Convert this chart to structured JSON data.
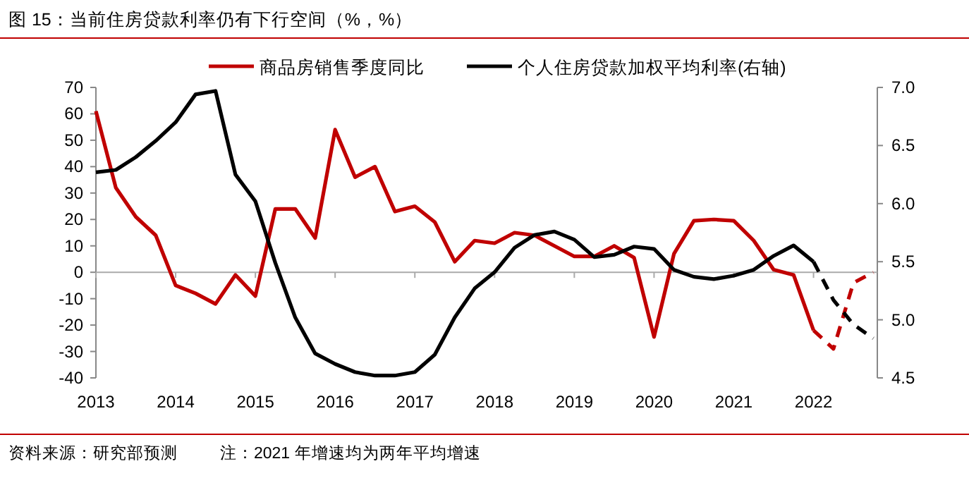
{
  "chart_data": {
    "type": "line",
    "title": "图 15：当前住房贷款利率仍有下行空间（%，%）",
    "annotations": [
      "资料来源：研究部预测",
      "注：2021 年增速均为两年平均增速"
    ],
    "xlim": [
      2013,
      2022.8
    ],
    "xticks": [
      2013,
      2014,
      2015,
      2016,
      2017,
      2018,
      2019,
      2020,
      2021,
      2022
    ],
    "ylim": [
      -40,
      70
    ],
    "yticks": [
      -40,
      -30,
      -20,
      -10,
      0,
      10,
      20,
      30,
      40,
      50,
      60,
      70
    ],
    "y2lim": [
      4.5,
      7.0
    ],
    "y2ticks": [
      4.5,
      {
        "value": 5,
        "label": "5.0"
      },
      5.5,
      {
        "value": 6,
        "label": "6.0"
      },
      6.5,
      {
        "value": 7,
        "label": "7.0"
      }
    ],
    "legend": "top",
    "series": [
      {
        "name": "商品房销售季度同比",
        "color": "#c00000",
        "line_style": "solid",
        "x": [
          2013,
          2013.25,
          2013.5,
          2013.75,
          2014,
          2014.25,
          2014.5,
          2014.75,
          2015,
          2015.25,
          2015.5,
          2015.75,
          2016,
          2016.25,
          2016.5,
          2016.75,
          2017,
          2017.25,
          2017.5,
          2017.75,
          2018,
          2018.25,
          2018.5,
          2018.75,
          2019,
          2019.25,
          2019.5,
          2019.75,
          2020,
          2020.25,
          2020.5,
          2020.75,
          2021,
          2021.25,
          2021.5,
          2021.75,
          2022
        ],
        "values": [
          61,
          32,
          21,
          14,
          -5,
          -8,
          -12,
          -1,
          -9,
          24,
          24,
          13,
          54,
          36,
          40,
          23,
          25,
          19,
          4,
          12,
          11,
          15,
          14,
          10,
          6,
          6,
          10,
          5.5,
          -24.5,
          7,
          19.5,
          20,
          19.5,
          12,
          1,
          -1,
          -22
        ]
      },
      {
        "color": "#c00000",
        "line_style": "dashed",
        "x": [
          2022,
          2022.25,
          2022.5,
          2022.75
        ],
        "values": [
          -22,
          -29,
          -4,
          0
        ]
      },
      {
        "name": "个人住房贷款加权平均利率(右轴)",
        "color": "#000000",
        "line_style": "solid",
        "axis": "y2",
        "x": [
          2013,
          2013.25,
          2013.5,
          2013.75,
          2014,
          2014.25,
          2014.5,
          2014.75,
          2015,
          2015.25,
          2015.5,
          2015.75,
          2016,
          2016.25,
          2016.5,
          2016.75,
          2017,
          2017.25,
          2017.5,
          2017.75,
          2018,
          2018.25,
          2018.5,
          2018.75,
          2019,
          2019.25,
          2019.5,
          2019.75,
          2020,
          2020.25,
          2020.5,
          2020.75,
          2021,
          2021.25,
          2021.5,
          2021.75,
          2022
        ],
        "values": [
          6.27,
          6.29,
          6.4,
          6.54,
          6.7,
          6.94,
          6.97,
          6.25,
          6.02,
          5.49,
          5.02,
          4.71,
          4.62,
          4.55,
          4.52,
          4.52,
          4.55,
          4.7,
          5.02,
          5.27,
          5.41,
          5.62,
          5.73,
          5.76,
          5.69,
          5.54,
          5.56,
          5.63,
          5.61,
          5.43,
          5.37,
          5.35,
          5.38,
          5.43,
          5.55,
          5.64,
          5.5
        ]
      },
      {
        "color": "#000000",
        "line_style": "dashed",
        "axis": "y2",
        "x": [
          2022,
          2022.25,
          2022.5,
          2022.75
        ],
        "values": [
          5.5,
          5.17,
          4.96,
          4.84
        ]
      }
    ]
  }
}
